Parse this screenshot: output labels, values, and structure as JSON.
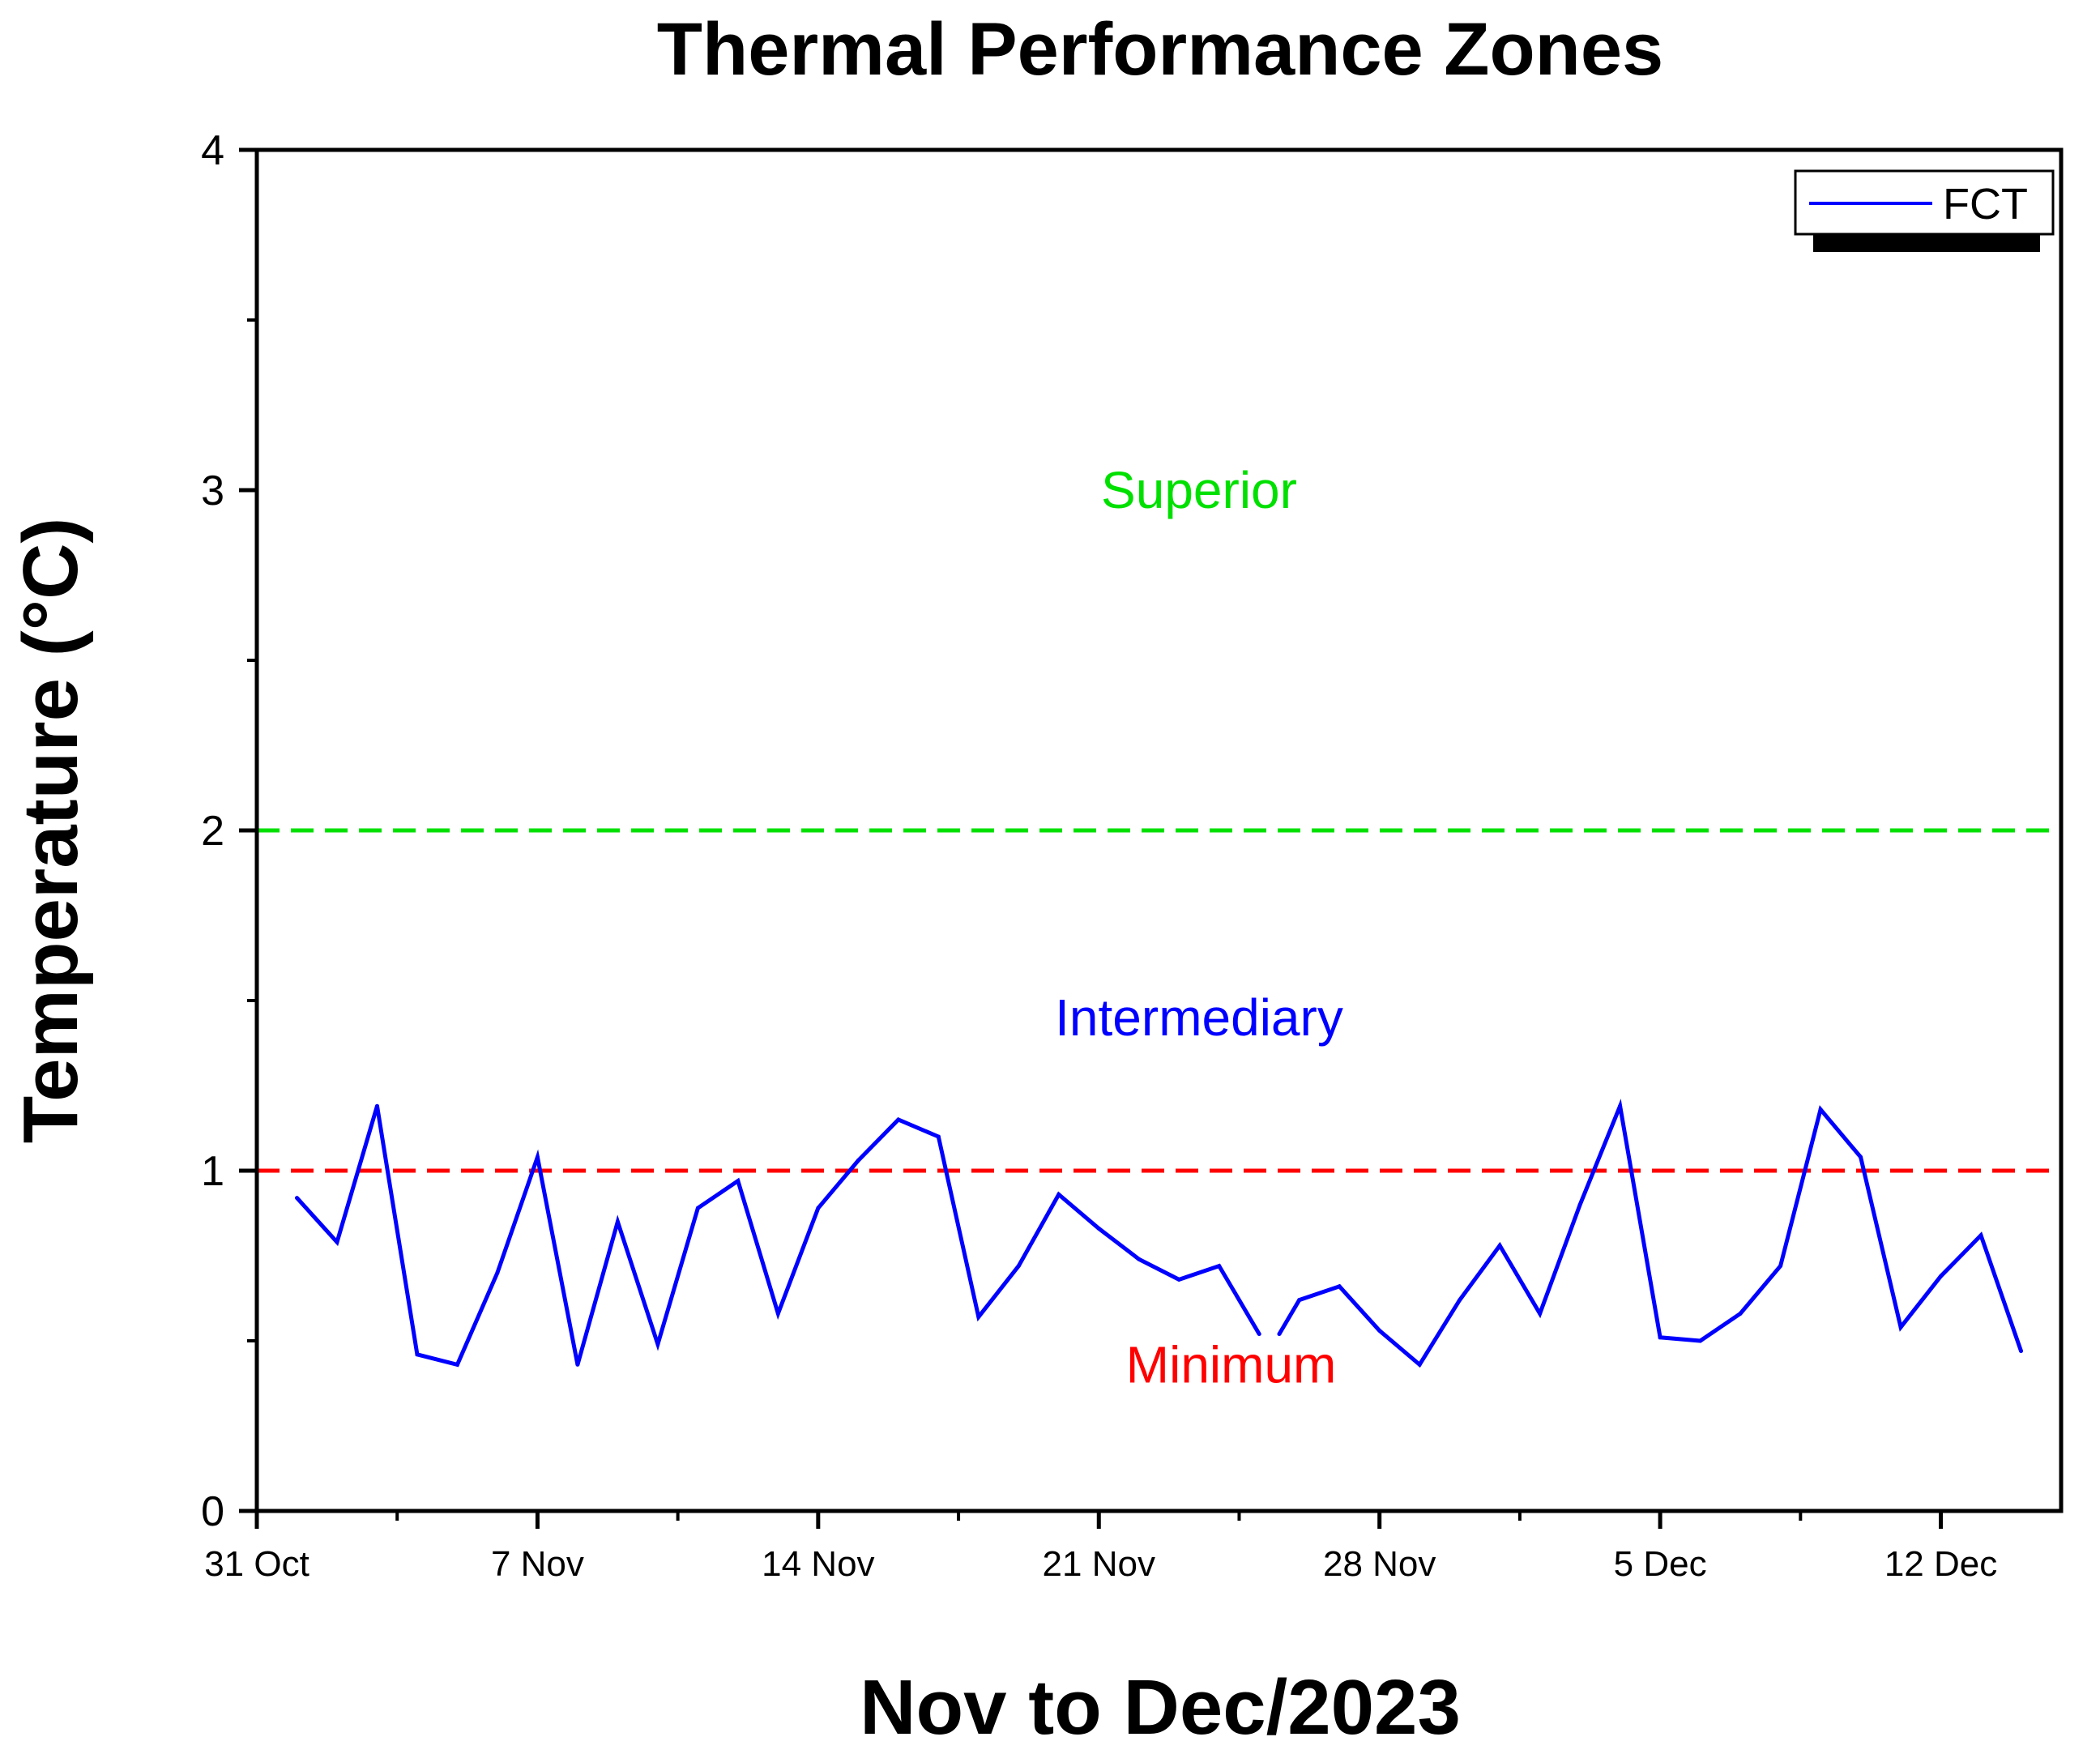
{
  "chart_data": {
    "type": "line",
    "title": "Thermal Performance Zones",
    "xlabel": "Nov to Dec/2023",
    "ylabel": "Temperature (°C)",
    "ylim": [
      0,
      4
    ],
    "xlim": [
      0,
      45
    ],
    "yticks": [
      0,
      1,
      2,
      3,
      4
    ],
    "xticks": [
      {
        "x": 0,
        "label": "31 Oct"
      },
      {
        "x": 7,
        "label": "7 Nov"
      },
      {
        "x": 14,
        "label": "14 Nov"
      },
      {
        "x": 21,
        "label": "21 Nov"
      },
      {
        "x": 28,
        "label": "28 Nov"
      },
      {
        "x": 35,
        "label": "5 Dec"
      },
      {
        "x": 42,
        "label": "12 Dec"
      }
    ],
    "minor_xticks": [
      3.5,
      10.5,
      17.5,
      24.5,
      31.5,
      38.5
    ],
    "minor_yticks": [
      0.5,
      1.5,
      2.5,
      3.5
    ],
    "series": [
      {
        "name": "FCT",
        "color": "#0000ff",
        "x": [
          1,
          2,
          3,
          4,
          5,
          6,
          7,
          8,
          9,
          10,
          11,
          12,
          13,
          14,
          15,
          16,
          17,
          18,
          19,
          20,
          21,
          22,
          23,
          24,
          25,
          null,
          25.5,
          26,
          27,
          28,
          29,
          30,
          31,
          32,
          33,
          34,
          35,
          36,
          37,
          38,
          39,
          40,
          41,
          42,
          43,
          44
        ],
        "y": [
          0.92,
          0.79,
          1.19,
          0.46,
          0.43,
          0.7,
          1.04,
          0.43,
          0.85,
          0.49,
          0.89,
          0.97,
          0.58,
          0.89,
          1.03,
          1.15,
          1.1,
          0.57,
          0.72,
          0.93,
          0.83,
          0.74,
          0.68,
          0.72,
          0.52,
          null,
          0.52,
          0.62,
          0.66,
          0.53,
          0.43,
          0.62,
          0.78,
          0.58,
          0.9,
          1.19,
          0.51,
          0.5,
          0.58,
          0.72,
          1.18,
          1.04,
          0.54,
          0.69,
          0.81,
          0.47
        ]
      }
    ],
    "thresholds": [
      {
        "name": "Superior threshold",
        "y": 2,
        "color": "#00e000",
        "style": "dashed"
      },
      {
        "name": "Minimum threshold",
        "y": 1,
        "color": "#ff0000",
        "style": "dashed"
      }
    ],
    "zone_labels": [
      {
        "text": "Superior",
        "x": 23.5,
        "y": 3.0,
        "color": "#00e000"
      },
      {
        "text": "Intermediary",
        "x": 23.5,
        "y": 1.45,
        "color": "#0000ff"
      },
      {
        "text": "Minimum",
        "x": 24.3,
        "y": 0.43,
        "color": "#ff0000"
      }
    ],
    "legend": {
      "position": "top-right",
      "entries": [
        {
          "label": "FCT",
          "color": "#0000ff"
        }
      ]
    }
  }
}
